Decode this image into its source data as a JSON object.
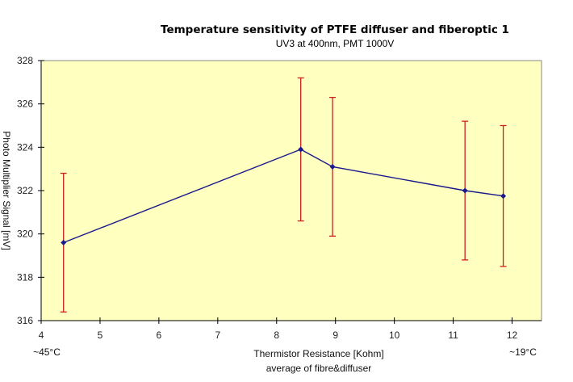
{
  "chart_data": {
    "type": "line",
    "title": "Temperature sensitivity of PTFE diffuser and fiberoptic 1",
    "subtitle": "UV3 at 400nm, PMT 1000V",
    "xlabel": "Thermistor Resistance [Kohm]",
    "xlabel2": "average of fibre&diffuser",
    "ylabel": "Photo Multiplier Signal [mV]",
    "x_annotation_left": "~45°C",
    "x_annotation_right": "~19°C",
    "xlim": [
      4,
      12.5
    ],
    "ylim": [
      316,
      328
    ],
    "xticks": [
      4,
      5,
      6,
      7,
      8,
      9,
      10,
      11,
      12
    ],
    "yticks": [
      316,
      318,
      320,
      322,
      324,
      326,
      328
    ],
    "grid": false,
    "background": "#ffffc0",
    "line_color": "#1a1a8c",
    "errorbar_color": "#cc2020",
    "series": [
      {
        "x": [
          4.38,
          8.41,
          8.95,
          11.2,
          11.85
        ],
        "y": [
          319.6,
          323.9,
          323.1,
          322.0,
          321.75
        ],
        "err_low": [
          316.4,
          320.6,
          319.9,
          318.8,
          318.5
        ],
        "err_high": [
          322.8,
          327.2,
          326.3,
          325.2,
          325.0
        ]
      }
    ]
  }
}
